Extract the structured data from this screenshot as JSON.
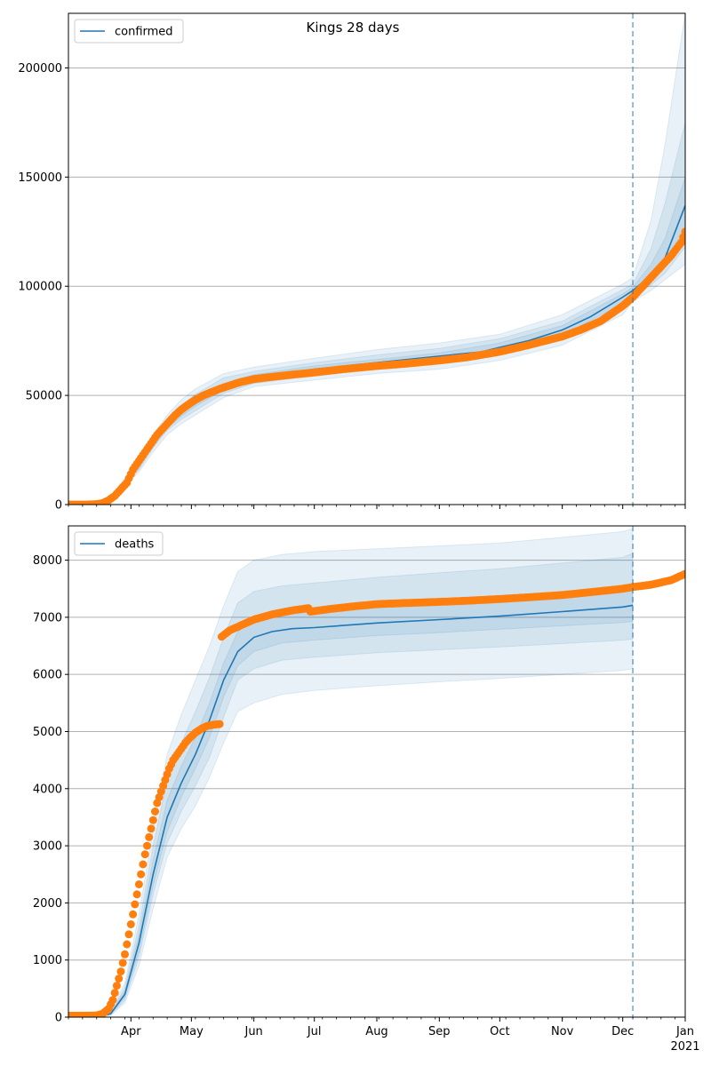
{
  "figure_title": "Kings 28 days",
  "colors": {
    "model": "#1f77b4",
    "observed": "#ff7f0e",
    "band": "#1f77b4",
    "grid": "#b0b0b0",
    "vline": "#1f77b4"
  },
  "chart_data": [
    {
      "type": "line",
      "name": "confirmed-panel",
      "legend": {
        "label": "confirmed",
        "position": "upper-left"
      },
      "title": "Kings 28 days",
      "x_axis": {
        "type": "date",
        "range": [
          "2020-03-01",
          "2021-01-01"
        ],
        "tick_labels": [
          {
            "date": "2020-04-01",
            "label": "Apr"
          },
          {
            "date": "2020-05-01",
            "label": "May"
          },
          {
            "date": "2020-06-01",
            "label": "Jun"
          },
          {
            "date": "2020-07-01",
            "label": "Jul"
          },
          {
            "date": "2020-08-01",
            "label": "Aug"
          },
          {
            "date": "2020-09-01",
            "label": "Sep"
          },
          {
            "date": "2020-10-01",
            "label": "Oct"
          },
          {
            "date": "2020-11-01",
            "label": "Nov"
          },
          {
            "date": "2020-12-01",
            "label": "Dec"
          },
          {
            "date": "2021-01-01",
            "label": "Jan",
            "sublabel": "2021"
          }
        ],
        "shown": false
      },
      "y_axis": {
        "range": [
          0,
          225000
        ],
        "ticks": [
          0,
          50000,
          100000,
          150000,
          200000
        ],
        "tick_labels": [
          "0",
          "50000",
          "100000",
          "150000",
          "200000"
        ],
        "grid": true
      },
      "forecast_start": "2020-12-06",
      "model": {
        "x": [
          "2020-03-01",
          "2020-03-15",
          "2020-03-22",
          "2020-03-29",
          "2020-04-05",
          "2020-04-12",
          "2020-04-19",
          "2020-04-26",
          "2020-05-03",
          "2020-05-10",
          "2020-05-17",
          "2020-05-24",
          "2020-06-01",
          "2020-06-15",
          "2020-07-01",
          "2020-08-01",
          "2020-09-01",
          "2020-09-22",
          "2020-10-01",
          "2020-10-15",
          "2020-11-01",
          "2020-11-15",
          "2020-12-01",
          "2020-12-06",
          "2020-12-15",
          "2020-12-22",
          "2021-01-01"
        ],
        "y": [
          0,
          0,
          3000,
          10000,
          18000,
          28000,
          36000,
          42000,
          47000,
          51000,
          54000,
          56000,
          58000,
          60000,
          62000,
          65000,
          68000,
          70000,
          72000,
          75000,
          80000,
          86000,
          95000,
          98000,
          105000,
          113000,
          137000
        ]
      },
      "bands": [
        {
          "x": [
            "2020-03-01",
            "2020-03-15",
            "2020-03-22",
            "2020-03-29",
            "2020-04-05",
            "2020-04-12",
            "2020-04-19",
            "2020-04-26",
            "2020-05-03",
            "2020-05-17",
            "2020-06-01",
            "2020-07-01",
            "2020-08-01",
            "2020-09-01",
            "2020-10-01",
            "2020-11-01",
            "2020-12-01",
            "2020-12-06",
            "2020-12-15",
            "2020-12-22",
            "2021-01-01"
          ],
          "low": [
            0,
            0,
            2000,
            8000,
            15000,
            24000,
            32000,
            37000,
            41000,
            49000,
            54000,
            57000,
            60000,
            62000,
            66000,
            73000,
            87000,
            93000,
            98000,
            103000,
            110000
          ],
          "high": [
            0,
            0,
            4000,
            12000,
            21000,
            32000,
            41000,
            48000,
            53000,
            60000,
            63000,
            67000,
            71000,
            74000,
            78000,
            87000,
            101000,
            104000,
            130000,
            165000,
            225000
          ]
        },
        {
          "x": [
            "2020-03-01",
            "2020-03-15",
            "2020-03-22",
            "2020-03-29",
            "2020-04-05",
            "2020-04-12",
            "2020-04-19",
            "2020-04-26",
            "2020-05-03",
            "2020-05-17",
            "2020-06-01",
            "2020-07-01",
            "2020-08-01",
            "2020-09-01",
            "2020-10-01",
            "2020-11-01",
            "2020-12-01",
            "2020-12-06",
            "2020-12-15",
            "2020-12-22",
            "2021-01-01"
          ],
          "low": [
            0,
            0,
            2500,
            9000,
            16000,
            26000,
            34000,
            39000,
            43000,
            51000,
            55500,
            59000,
            62000,
            64500,
            68500,
            75500,
            89500,
            95000,
            100500,
            106000,
            118000
          ],
          "high": [
            0,
            0,
            3500,
            11000,
            20000,
            30000,
            39000,
            45500,
            50500,
            58000,
            61000,
            65000,
            68500,
            71500,
            76000,
            84000,
            98500,
            101000,
            117000,
            138000,
            175000
          ]
        },
        {
          "x": [
            "2020-03-01",
            "2020-03-15",
            "2020-03-22",
            "2020-03-29",
            "2020-04-05",
            "2020-04-12",
            "2020-04-19",
            "2020-04-26",
            "2020-05-03",
            "2020-05-17",
            "2020-06-01",
            "2020-07-01",
            "2020-08-01",
            "2020-09-01",
            "2020-10-01",
            "2020-11-01",
            "2020-12-01",
            "2020-12-06",
            "2020-12-15",
            "2020-12-22",
            "2021-01-01"
          ],
          "low": [
            0,
            0,
            2800,
            9500,
            17000,
            27000,
            35000,
            40500,
            45000,
            52500,
            56800,
            60500,
            63500,
            66500,
            70500,
            77500,
            92000,
            96500,
            102500,
            109000,
            125000
          ],
          "high": [
            0,
            0,
            3200,
            10500,
            19000,
            29000,
            37500,
            43500,
            48500,
            55500,
            59500,
            63500,
            66500,
            69500,
            74000,
            82000,
            96500,
            99500,
            110000,
            122000,
            150000
          ]
        }
      ],
      "observed": {
        "x": [
          "2020-03-01",
          "2020-03-10",
          "2020-03-15",
          "2020-03-18",
          "2020-03-21",
          "2020-03-24",
          "2020-03-27",
          "2020-03-30",
          "2020-04-02",
          "2020-04-05",
          "2020-04-08",
          "2020-04-11",
          "2020-04-14",
          "2020-04-17",
          "2020-04-20",
          "2020-04-23",
          "2020-04-26",
          "2020-04-29",
          "2020-05-03",
          "2020-05-07",
          "2020-05-11",
          "2020-05-15",
          "2020-05-20",
          "2020-05-25",
          "2020-06-01",
          "2020-06-10",
          "2020-06-20",
          "2020-07-01",
          "2020-07-15",
          "2020-08-01",
          "2020-08-15",
          "2020-09-01",
          "2020-09-15",
          "2020-10-01",
          "2020-10-15",
          "2020-11-01",
          "2020-11-10",
          "2020-11-20",
          "2020-12-01",
          "2020-12-06",
          "2020-12-10",
          "2020-12-15",
          "2020-12-20",
          "2020-12-25",
          "2020-12-30",
          "2021-01-01"
        ],
        "y": [
          0,
          0,
          200,
          700,
          2000,
          4000,
          7000,
          10000,
          16000,
          20000,
          24000,
          28000,
          32000,
          35000,
          38000,
          41000,
          43500,
          45500,
          48000,
          50000,
          51500,
          53000,
          54500,
          56000,
          57500,
          58500,
          59500,
          60500,
          62000,
          63500,
          64500,
          66000,
          67500,
          70000,
          73000,
          77000,
          80000,
          84000,
          91000,
          95000,
          99000,
          104000,
          109000,
          114000,
          120000,
          125000
        ]
      }
    },
    {
      "type": "line",
      "name": "deaths-panel",
      "legend": {
        "label": "deaths",
        "position": "upper-left"
      },
      "x_axis": {
        "type": "date",
        "range": [
          "2020-03-01",
          "2021-01-01"
        ],
        "tick_labels": [
          {
            "date": "2020-04-01",
            "label": "Apr"
          },
          {
            "date": "2020-05-01",
            "label": "May"
          },
          {
            "date": "2020-06-01",
            "label": "Jun"
          },
          {
            "date": "2020-07-01",
            "label": "Jul"
          },
          {
            "date": "2020-08-01",
            "label": "Aug"
          },
          {
            "date": "2020-09-01",
            "label": "Sep"
          },
          {
            "date": "2020-10-01",
            "label": "Oct"
          },
          {
            "date": "2020-11-01",
            "label": "Nov"
          },
          {
            "date": "2020-12-01",
            "label": "Dec"
          },
          {
            "date": "2021-01-01",
            "label": "Jan",
            "sublabel": "2021"
          }
        ],
        "shown": true
      },
      "y_axis": {
        "range": [
          0,
          8600
        ],
        "ticks": [
          0,
          1000,
          2000,
          3000,
          4000,
          5000,
          6000,
          7000,
          8000
        ],
        "tick_labels": [
          "0",
          "1000",
          "2000",
          "3000",
          "4000",
          "5000",
          "6000",
          "7000",
          "8000"
        ],
        "grid": true
      },
      "forecast_start": "2020-12-06",
      "model": {
        "x": [
          "2020-03-01",
          "2020-03-15",
          "2020-03-22",
          "2020-03-29",
          "2020-04-05",
          "2020-04-12",
          "2020-04-19",
          "2020-04-26",
          "2020-05-03",
          "2020-05-10",
          "2020-05-17",
          "2020-05-24",
          "2020-06-01",
          "2020-06-10",
          "2020-06-20",
          "2020-07-01",
          "2020-08-01",
          "2020-09-01",
          "2020-10-01",
          "2020-11-01",
          "2020-12-01",
          "2020-12-06"
        ],
        "y": [
          0,
          0,
          60,
          400,
          1300,
          2500,
          3500,
          4100,
          4600,
          5200,
          5900,
          6400,
          6650,
          6750,
          6800,
          6820,
          6900,
          6960,
          7020,
          7100,
          7180,
          7210
        ]
      },
      "bands": [
        {
          "x": [
            "2020-03-01",
            "2020-03-15",
            "2020-03-22",
            "2020-03-29",
            "2020-04-05",
            "2020-04-12",
            "2020-04-19",
            "2020-04-26",
            "2020-05-03",
            "2020-05-10",
            "2020-05-17",
            "2020-05-24",
            "2020-06-01",
            "2020-06-15",
            "2020-07-01",
            "2020-08-01",
            "2020-09-01",
            "2020-10-01",
            "2020-11-01",
            "2020-12-01",
            "2020-12-06"
          ],
          "low": [
            0,
            0,
            30,
            250,
            900,
            1900,
            2800,
            3300,
            3700,
            4200,
            4800,
            5350,
            5500,
            5650,
            5720,
            5800,
            5870,
            5930,
            6000,
            6070,
            6100
          ],
          "high": [
            0,
            0,
            100,
            600,
            1800,
            3300,
            4600,
            5300,
            5900,
            6500,
            7200,
            7800,
            8000,
            8100,
            8150,
            8200,
            8250,
            8300,
            8400,
            8500,
            8550
          ]
        },
        {
          "x": [
            "2020-03-01",
            "2020-03-15",
            "2020-03-22",
            "2020-03-29",
            "2020-04-05",
            "2020-04-12",
            "2020-04-19",
            "2020-04-26",
            "2020-05-03",
            "2020-05-10",
            "2020-05-17",
            "2020-05-24",
            "2020-06-01",
            "2020-06-15",
            "2020-07-01",
            "2020-08-01",
            "2020-09-01",
            "2020-10-01",
            "2020-11-01",
            "2020-12-01",
            "2020-12-06"
          ],
          "low": [
            0,
            0,
            40,
            300,
            1050,
            2150,
            3050,
            3600,
            4050,
            4550,
            5250,
            5900,
            6100,
            6250,
            6300,
            6380,
            6430,
            6480,
            6540,
            6600,
            6620
          ],
          "high": [
            0,
            0,
            85,
            520,
            1600,
            3000,
            4150,
            4800,
            5350,
            5950,
            6650,
            7250,
            7450,
            7550,
            7600,
            7700,
            7780,
            7850,
            7950,
            8050,
            8120
          ]
        },
        {
          "x": [
            "2020-03-01",
            "2020-03-15",
            "2020-03-22",
            "2020-03-29",
            "2020-04-05",
            "2020-04-12",
            "2020-04-19",
            "2020-04-26",
            "2020-05-03",
            "2020-05-10",
            "2020-05-17",
            "2020-05-24",
            "2020-06-01",
            "2020-06-15",
            "2020-07-01",
            "2020-08-01",
            "2020-09-01",
            "2020-10-01",
            "2020-11-01",
            "2020-12-01",
            "2020-12-06"
          ],
          "low": [
            0,
            0,
            50,
            350,
            1150,
            2300,
            3250,
            3850,
            4350,
            4900,
            5600,
            6150,
            6400,
            6550,
            6600,
            6680,
            6730,
            6790,
            6850,
            6910,
            6930
          ],
          "high": [
            0,
            0,
            75,
            460,
            1450,
            2750,
            3800,
            4400,
            4900,
            5500,
            6200,
            6750,
            6950,
            7050,
            7100,
            7170,
            7230,
            7300,
            7380,
            7460,
            7500
          ]
        }
      ],
      "observed": {
        "x": [
          "2020-03-01",
          "2020-03-10",
          "2020-03-15",
          "2020-03-18",
          "2020-03-21",
          "2020-03-23",
          "2020-03-25",
          "2020-03-27",
          "2020-03-29",
          "2020-03-31",
          "2020-04-02",
          "2020-04-04",
          "2020-04-06",
          "2020-04-08",
          "2020-04-10",
          "2020-04-12",
          "2020-04-14",
          "2020-04-16",
          "2020-04-18",
          "2020-04-20",
          "2020-04-22",
          "2020-04-24",
          "2020-04-26",
          "2020-04-28",
          "2020-04-30",
          "2020-05-03",
          "2020-05-06",
          "2020-05-09",
          "2020-05-12",
          "2020-05-15",
          "2020-05-16",
          "2020-05-20",
          "2020-05-25",
          "2020-06-01",
          "2020-06-10",
          "2020-06-20",
          "2020-06-28",
          "2020-06-29",
          "2020-07-10",
          "2020-07-20",
          "2020-08-01",
          "2020-08-15",
          "2020-09-01",
          "2020-09-15",
          "2020-10-01",
          "2020-10-15",
          "2020-11-01",
          "2020-11-15",
          "2020-12-01",
          "2020-12-06",
          "2020-12-15",
          "2020-12-25",
          "2021-01-01"
        ],
        "y": [
          25,
          25,
          30,
          60,
          150,
          300,
          550,
          800,
          1100,
          1450,
          1800,
          2150,
          2500,
          2850,
          3150,
          3450,
          3750,
          3950,
          4150,
          4350,
          4500,
          4600,
          4700,
          4800,
          4880,
          4980,
          5050,
          5100,
          5120,
          5130,
          6660,
          6770,
          6850,
          6960,
          7050,
          7120,
          7160,
          7100,
          7150,
          7190,
          7230,
          7250,
          7270,
          7290,
          7320,
          7350,
          7390,
          7440,
          7500,
          7530,
          7570,
          7650,
          7760
        ]
      }
    }
  ]
}
